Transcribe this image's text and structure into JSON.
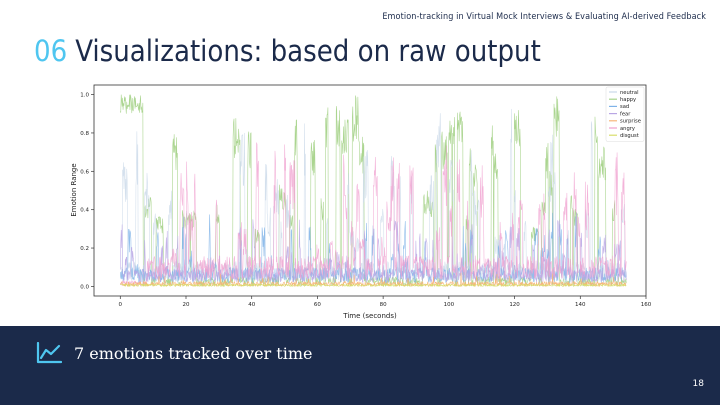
{
  "slide": {
    "header_note": "Emotion-tracking in Virtual Mock Interviews & Evaluating AI-derived Feedback",
    "section_number": "06",
    "title": "Visualizations: based on raw output",
    "caption": "7 emotions tracked over time",
    "page_number": "18",
    "icon": "trend-line-icon",
    "colors": {
      "navy": "#1b2a4a",
      "accent": "#4fc6f0",
      "icon": "#4fc6f0"
    }
  },
  "chart_data": {
    "type": "line",
    "xlabel": "Time (seconds)",
    "ylabel": "Emotion Range",
    "xlim": [
      -8,
      160
    ],
    "ylim": [
      -0.05,
      1.05
    ],
    "x_ticks": [
      "0",
      "20",
      "40",
      "60",
      "80",
      "100",
      "120",
      "140",
      "160"
    ],
    "x_tick_values": [
      0,
      20,
      40,
      60,
      80,
      100,
      120,
      140,
      160
    ],
    "y_ticks": [
      "0.0",
      "0.2",
      "0.4",
      "0.6",
      "0.8",
      "1.0"
    ],
    "y_tick_values": [
      0,
      0.2,
      0.4,
      0.6,
      0.8,
      1.0
    ],
    "grid": false,
    "legend_position": "top-right",
    "x_range": [
      0,
      154
    ],
    "series": [
      {
        "name": "neutral",
        "color": "#c9d8e8",
        "profile": "neutral"
      },
      {
        "name": "happy",
        "color": "#a6d38a",
        "profile": "happy"
      },
      {
        "name": "sad",
        "color": "#7fb3e8",
        "profile": "sad"
      },
      {
        "name": "fear",
        "color": "#b9a6e4",
        "profile": "fear"
      },
      {
        "name": "surprise",
        "color": "#f6b57a",
        "profile": "surprise"
      },
      {
        "name": "angry",
        "color": "#f0a0cf",
        "profile": "angry"
      },
      {
        "name": "disgust",
        "color": "#d8de6a",
        "profile": "disgust"
      }
    ]
  }
}
